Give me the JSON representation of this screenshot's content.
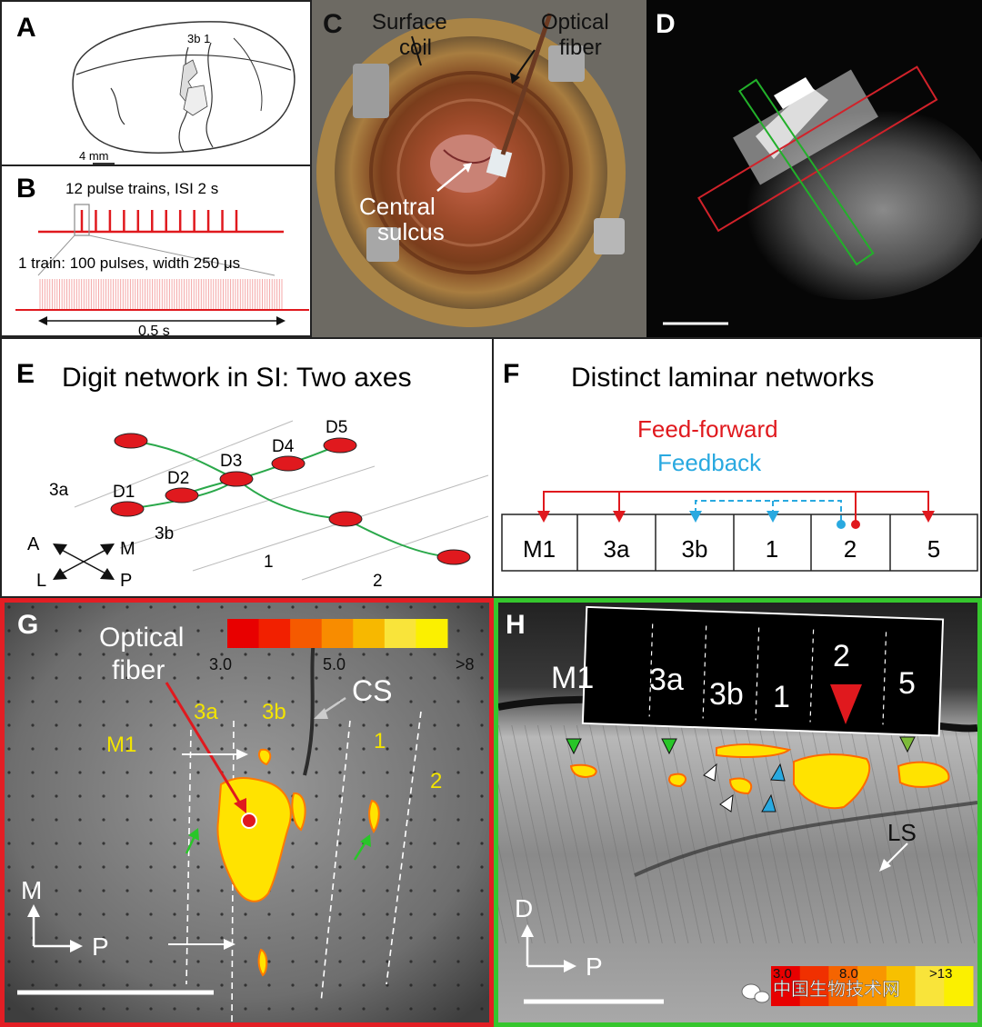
{
  "panels": {
    "A": {
      "label": "A",
      "region_label": "3b 1",
      "scale": "4 mm"
    },
    "B": {
      "label": "B",
      "title": "12 pulse trains, ISI 2 s",
      "subtitle": "1 train: 100 pulses, width 250 μs",
      "duration": "0.5 s",
      "train_count": 12,
      "pulses_per_train": 100
    },
    "C": {
      "label": "C",
      "surface_coil": [
        "Surface",
        "coil"
      ],
      "optical_fiber": [
        "Optical",
        "fiber"
      ],
      "central_sulcus": [
        "Central",
        "sulcus"
      ]
    },
    "D": {
      "label": "D"
    },
    "E": {
      "label": "E",
      "title": "Digit network in SI: Two axes",
      "digits": [
        "D1",
        "D2",
        "D3",
        "D4",
        "D5"
      ],
      "areas": [
        "3a",
        "3b",
        "1",
        "2"
      ],
      "orientation": [
        "A",
        "M",
        "L",
        "P"
      ]
    },
    "F": {
      "label": "F",
      "title": "Distinct laminar networks",
      "feedforward": "Feed-forward",
      "feedback": "Feedback",
      "areas": [
        "M1",
        "3a",
        "3b",
        "1",
        "2",
        "5"
      ]
    },
    "G": {
      "label": "G",
      "optical_fiber": [
        "Optical",
        "fiber"
      ],
      "scale_ticks": [
        "3.0",
        "5.0",
        ">8"
      ],
      "areas": [
        "M1",
        "3a",
        "3b",
        "1",
        "2"
      ],
      "cs": "CS",
      "axis_vertical": "M",
      "axis_horizontal": "P"
    },
    "H": {
      "label": "H",
      "areas": [
        "M1",
        "3a",
        "3b",
        "1",
        "2",
        "5"
      ],
      "ls": "LS",
      "axis_vertical": "D",
      "axis_horizontal": "P",
      "scale_ticks": [
        "3.0",
        "8.0",
        ">13"
      ]
    }
  },
  "watermark": "中国生物技术网",
  "colors": {
    "red": "#e0191e",
    "green": "#2aa84a",
    "blue": "#29a9e0",
    "frame_red": "#e31e24",
    "frame_green": "#35c62d",
    "yellow": "#f3e400"
  }
}
